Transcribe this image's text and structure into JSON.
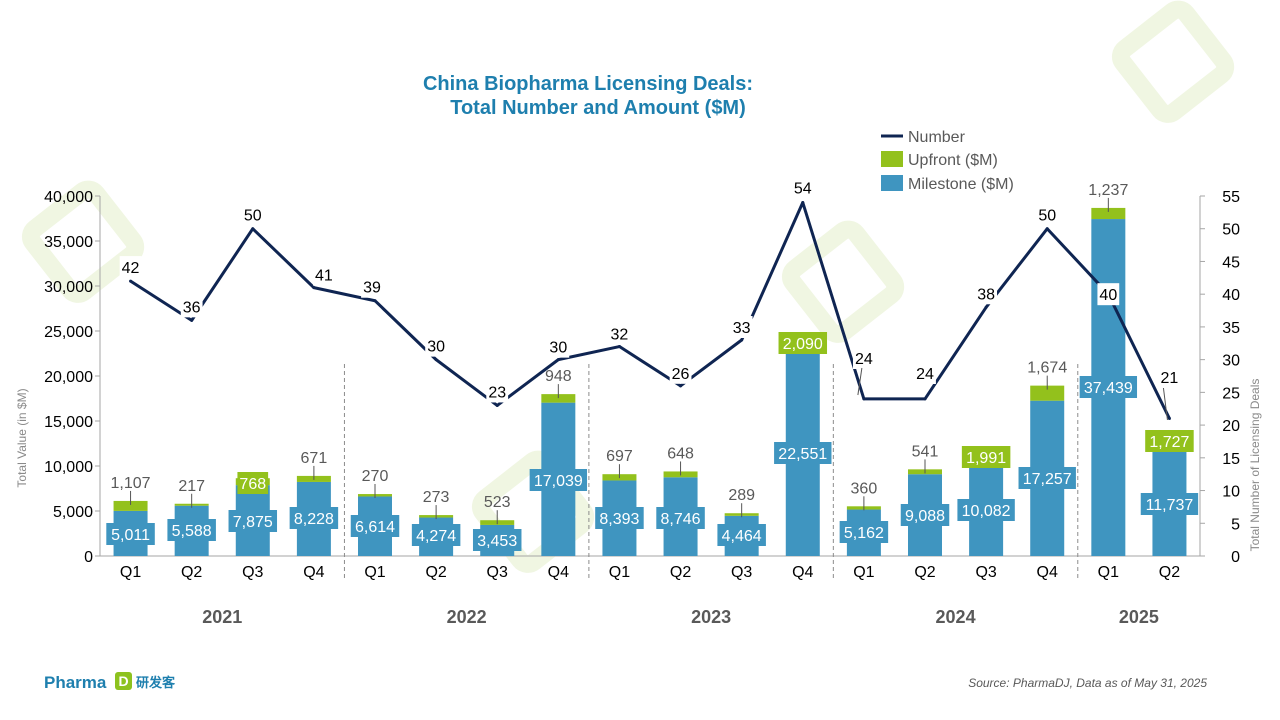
{
  "colors": {
    "milestone": "#3f95c0",
    "upfront": "#93c11c",
    "line": "#0f2552",
    "title": "#1e7fae",
    "brand": "#1e7fae",
    "brand_accent": "#8dc21f"
  },
  "brand": {
    "name": "Pharma",
    "name_cjk": "研发客",
    "mark": "D"
  },
  "source": "Source: PharmaDJ, Data as of May 31, 2025",
  "chart_data": {
    "type": "bar",
    "title": "China Biopharma Licensing Deals:",
    "subtitle": "Total Number and Amount ($M)",
    "ylabel": "Total Value (in $M)",
    "y2label": "Total Number of Licensing Deals",
    "ylim": [
      0,
      40000
    ],
    "y2lim": [
      0,
      55
    ],
    "yticks": [
      "0",
      "5,000",
      "10,000",
      "15,000",
      "20,000",
      "25,000",
      "30,000",
      "35,000",
      "40,000"
    ],
    "y2ticks": [
      "0",
      "5",
      "10",
      "15",
      "20",
      "25",
      "30",
      "35",
      "40",
      "45",
      "50",
      "55"
    ],
    "legend_position": "top-right",
    "categories": [
      "Q1",
      "Q2",
      "Q3",
      "Q4",
      "Q1",
      "Q2",
      "Q3",
      "Q4",
      "Q1",
      "Q2",
      "Q3",
      "Q4",
      "Q1",
      "Q2",
      "Q3",
      "Q4",
      "Q1",
      "Q2"
    ],
    "groups": [
      {
        "label": "2021",
        "count": 4
      },
      {
        "label": "2022",
        "count": 4
      },
      {
        "label": "2023",
        "count": 4
      },
      {
        "label": "2024",
        "count": 4
      },
      {
        "label": "2025",
        "count": 2
      }
    ],
    "series": [
      {
        "name": "Milestone ($M)",
        "type": "bar",
        "stack": "value",
        "values": [
          5011,
          5588,
          7875,
          8228,
          6614,
          4274,
          3453,
          17039,
          8393,
          8746,
          4464,
          22551,
          5162,
          9088,
          10082,
          17257,
          37439,
          11737
        ],
        "labels": [
          "5,011",
          "5,588",
          "7,875",
          "8,228",
          "6,614",
          "4,274",
          "3,453",
          "17,039",
          "8,393",
          "8,746",
          "4,464",
          "22,551",
          "5,162",
          "9,088",
          "10,082",
          "17,257",
          "37,439",
          "11,737"
        ]
      },
      {
        "name": "Upfront ($M)",
        "type": "bar",
        "stack": "value",
        "values": [
          1107,
          217,
          768,
          671,
          270,
          273,
          523,
          948,
          697,
          648,
          289,
          2090,
          360,
          541,
          1991,
          1674,
          1237,
          1727
        ],
        "labels": [
          "1,107",
          "217",
          "768",
          "671",
          "270",
          "273",
          "523",
          "948",
          "697",
          "648",
          "289",
          "2,090",
          "360",
          "541",
          "1,991",
          "1,674",
          "1,237",
          "1,727"
        ]
      },
      {
        "name": "Number",
        "type": "line",
        "axis": "right",
        "values": [
          42,
          36,
          50,
          41,
          39,
          30,
          23,
          30,
          32,
          26,
          33,
          54,
          24,
          24,
          38,
          50,
          40,
          21
        ],
        "labels": [
          "42",
          "36",
          "50",
          "41",
          "39",
          "30",
          "23",
          "30",
          "32",
          "26",
          "33",
          "54",
          "24",
          "24",
          "38",
          "50",
          "40",
          "21"
        ]
      }
    ]
  }
}
